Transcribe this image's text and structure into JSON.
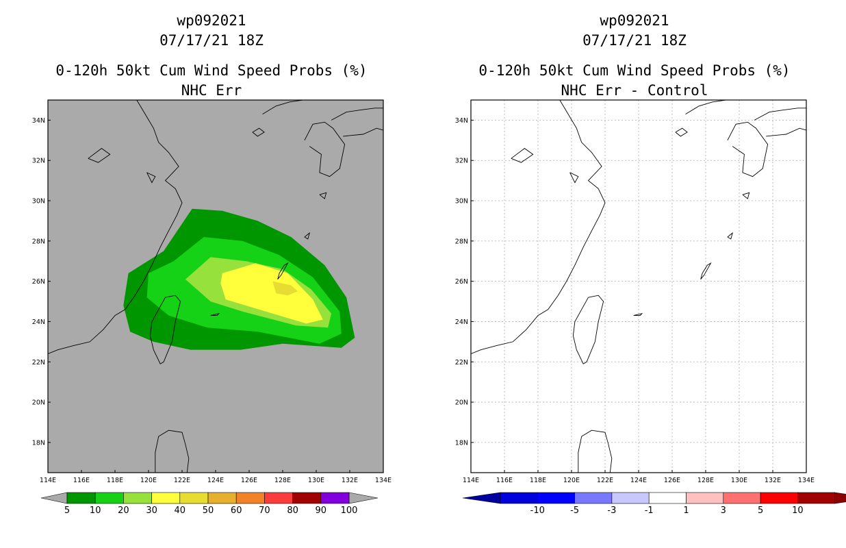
{
  "left": {
    "title_line1": "wp092021",
    "title_line2": "07/17/21 18Z",
    "title_line3": "0-120h 50kt Cum Wind Speed Probs (%)",
    "title_line4": "NHC Err"
  },
  "right": {
    "title_line1": "wp092021",
    "title_line2": "07/17/21 18Z",
    "title_line3": "0-120h 50kt Cum Wind Speed Probs (%)",
    "title_line4": "NHC Err - Control"
  },
  "chart_data": [
    {
      "type": "heatmap",
      "title": "0-120h 50kt Cum Wind Speed Probs (%)",
      "subtitle": "NHC Err",
      "x_ticks": [
        "114E",
        "116E",
        "118E",
        "120E",
        "122E",
        "124E",
        "126E",
        "128E",
        "130E",
        "132E",
        "134E"
      ],
      "y_ticks": [
        "18N",
        "20N",
        "22N",
        "24N",
        "26N",
        "28N",
        "30N",
        "32N",
        "34N"
      ],
      "xlim": [
        114,
        134
      ],
      "ylim": [
        16.5,
        35
      ],
      "background": "#aaaaaa",
      "colorbar": {
        "labels": [
          "5",
          "10",
          "20",
          "30",
          "40",
          "50",
          "60",
          "70",
          "80",
          "90",
          "100"
        ],
        "colors": [
          "#009600",
          "#16d216",
          "#96e13c",
          "#ffff3c",
          "#e6dc32",
          "#e6af2d",
          "#f08228",
          "#fa3c3c",
          "#a00000",
          "#8200dc"
        ],
        "end_color": "#aaaaaa"
      },
      "contours": [
        {
          "level": 5,
          "color": "#009600",
          "points": [
            [
              120.9,
              27.5
            ],
            [
              122.6,
              29.6
            ],
            [
              124.4,
              29.5
            ],
            [
              126.5,
              29.0
            ],
            [
              128.5,
              28.2
            ],
            [
              130.5,
              26.8
            ],
            [
              131.8,
              25.2
            ],
            [
              132.3,
              23.2
            ],
            [
              131.5,
              22.7
            ],
            [
              128.0,
              22.9
            ],
            [
              125.5,
              22.6
            ],
            [
              122.5,
              22.6
            ],
            [
              120.3,
              23.0
            ],
            [
              118.9,
              23.5
            ],
            [
              118.5,
              24.8
            ],
            [
              118.8,
              26.4
            ]
          ]
        },
        {
          "level": 10,
          "color": "#16d216",
          "points": [
            [
              121.5,
              27.0
            ],
            [
              123.3,
              28.2
            ],
            [
              125.6,
              28.0
            ],
            [
              127.8,
              27.3
            ],
            [
              129.8,
              26.2
            ],
            [
              131.4,
              24.5
            ],
            [
              131.5,
              23.4
            ],
            [
              130.2,
              22.9
            ],
            [
              126.5,
              23.5
            ],
            [
              123.5,
              23.7
            ],
            [
              121.2,
              24.3
            ],
            [
              119.9,
              25.2
            ],
            [
              120.0,
              26.4
            ]
          ]
        },
        {
          "level": 20,
          "color": "#96e13c",
          "points": [
            [
              122.2,
              26.1
            ],
            [
              123.7,
              27.2
            ],
            [
              125.8,
              27.0
            ],
            [
              128.0,
              26.6
            ],
            [
              129.7,
              25.6
            ],
            [
              130.9,
              24.4
            ],
            [
              130.7,
              23.7
            ],
            [
              128.8,
              23.8
            ],
            [
              125.6,
              24.5
            ],
            [
              123.7,
              25.0
            ]
          ]
        },
        {
          "level": 30,
          "color": "#ffff3c",
          "points": [
            [
              124.4,
              26.4
            ],
            [
              126.4,
              26.9
            ],
            [
              128.3,
              26.4
            ],
            [
              129.8,
              25.1
            ],
            [
              130.4,
              24.1
            ],
            [
              129.4,
              23.9
            ],
            [
              127.0,
              24.5
            ],
            [
              124.6,
              25.1
            ],
            [
              124.3,
              25.9
            ]
          ]
        },
        {
          "level": 40,
          "color": "#e6dc32",
          "points": [
            [
              127.4,
              26.0
            ],
            [
              128.5,
              25.8
            ],
            [
              128.9,
              25.5
            ],
            [
              128.3,
              25.3
            ],
            [
              127.6,
              25.4
            ]
          ]
        }
      ]
    },
    {
      "type": "heatmap",
      "title": "0-120h 50kt Cum Wind Speed Probs (%)",
      "subtitle": "NHC Err - Control",
      "x_ticks": [
        "114E",
        "116E",
        "118E",
        "120E",
        "122E",
        "124E",
        "126E",
        "128E",
        "130E",
        "132E",
        "134E"
      ],
      "y_ticks": [
        "18N",
        "20N",
        "22N",
        "24N",
        "26N",
        "28N",
        "30N",
        "32N",
        "34N"
      ],
      "xlim": [
        114,
        134
      ],
      "ylim": [
        16.5,
        35
      ],
      "background": "#ffffff",
      "colorbar": {
        "labels": [
          "-10",
          "-5",
          "-3",
          "-1",
          "1",
          "3",
          "5",
          "10"
        ],
        "colors": [
          "#0000dc",
          "#0000ff",
          "#7878ff",
          "#c8c8ff",
          "#ffffff",
          "#ffc0c0",
          "#ff7070",
          "#ff0000",
          "#a00000"
        ],
        "end_left_color": "#0000a0",
        "end_right_color": "#8c0000"
      },
      "contours": []
    }
  ]
}
